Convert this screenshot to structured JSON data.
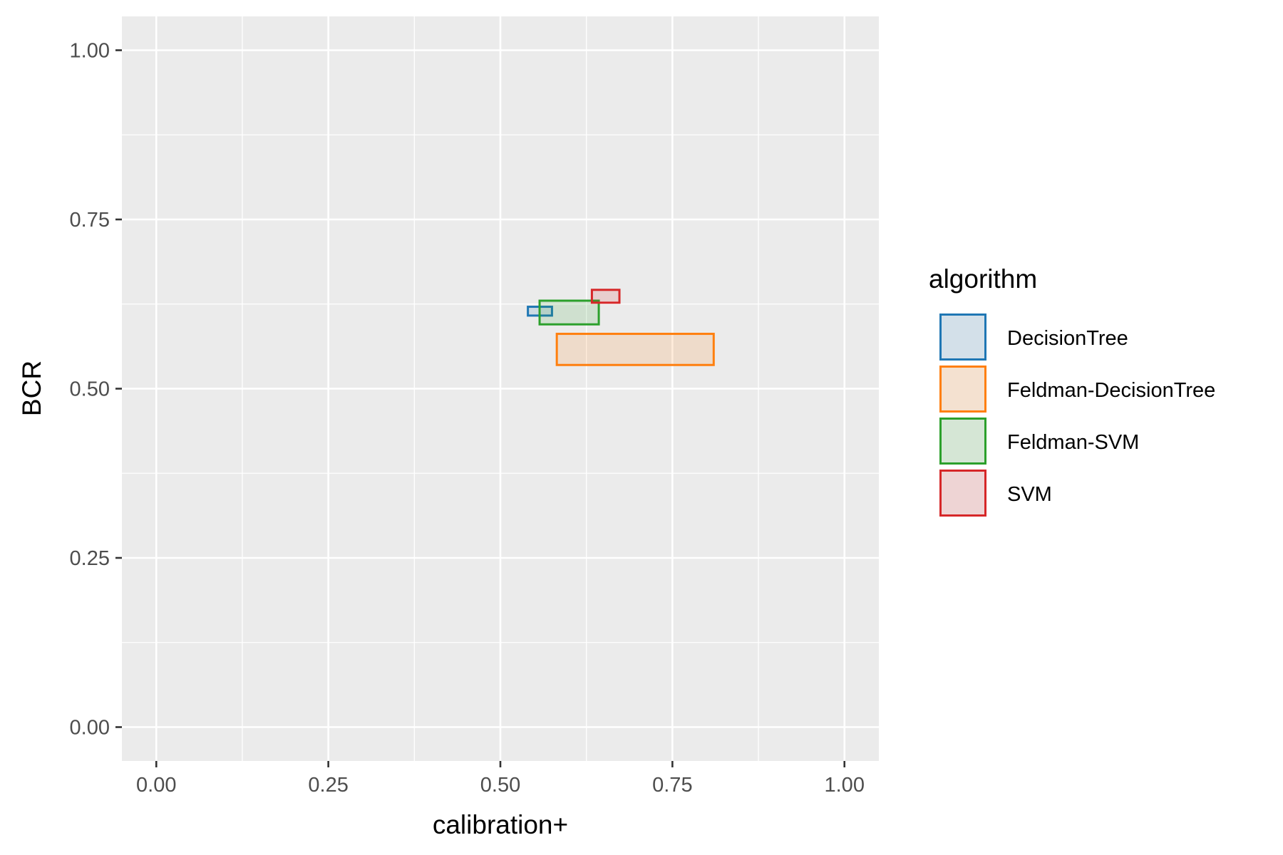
{
  "chart_data": {
    "type": "rect",
    "xlabel": "calibration+",
    "ylabel": "BCR",
    "xlim": [
      -0.05,
      1.05
    ],
    "ylim": [
      -0.05,
      1.05
    ],
    "x_ticks": [
      "0.00",
      "0.25",
      "0.50",
      "0.75",
      "1.00"
    ],
    "y_ticks": [
      "0.00",
      "0.25",
      "0.50",
      "0.75",
      "1.00"
    ],
    "x_tick_values": [
      0,
      0.25,
      0.5,
      0.75,
      1.0
    ],
    "y_tick_values": [
      0,
      0.25,
      0.5,
      0.75,
      1.0
    ],
    "grid": true,
    "panel_background": "#ebebeb",
    "legend": {
      "title": "algorithm",
      "position": "right"
    },
    "series": [
      {
        "name": "DecisionTree",
        "color": "#1f77b4",
        "xmin": 0.54,
        "xmax": 0.575,
        "ymin": 0.608,
        "ymax": 0.621
      },
      {
        "name": "Feldman-DecisionTree",
        "color": "#ff7f0e",
        "xmin": 0.582,
        "xmax": 0.81,
        "ymin": 0.535,
        "ymax": 0.581
      },
      {
        "name": "Feldman-SVM",
        "color": "#2ca02c",
        "xmin": 0.557,
        "xmax": 0.643,
        "ymin": 0.595,
        "ymax": 0.63
      },
      {
        "name": "SVM",
        "color": "#d62728",
        "xmin": 0.633,
        "xmax": 0.673,
        "ymin": 0.627,
        "ymax": 0.646
      }
    ]
  }
}
